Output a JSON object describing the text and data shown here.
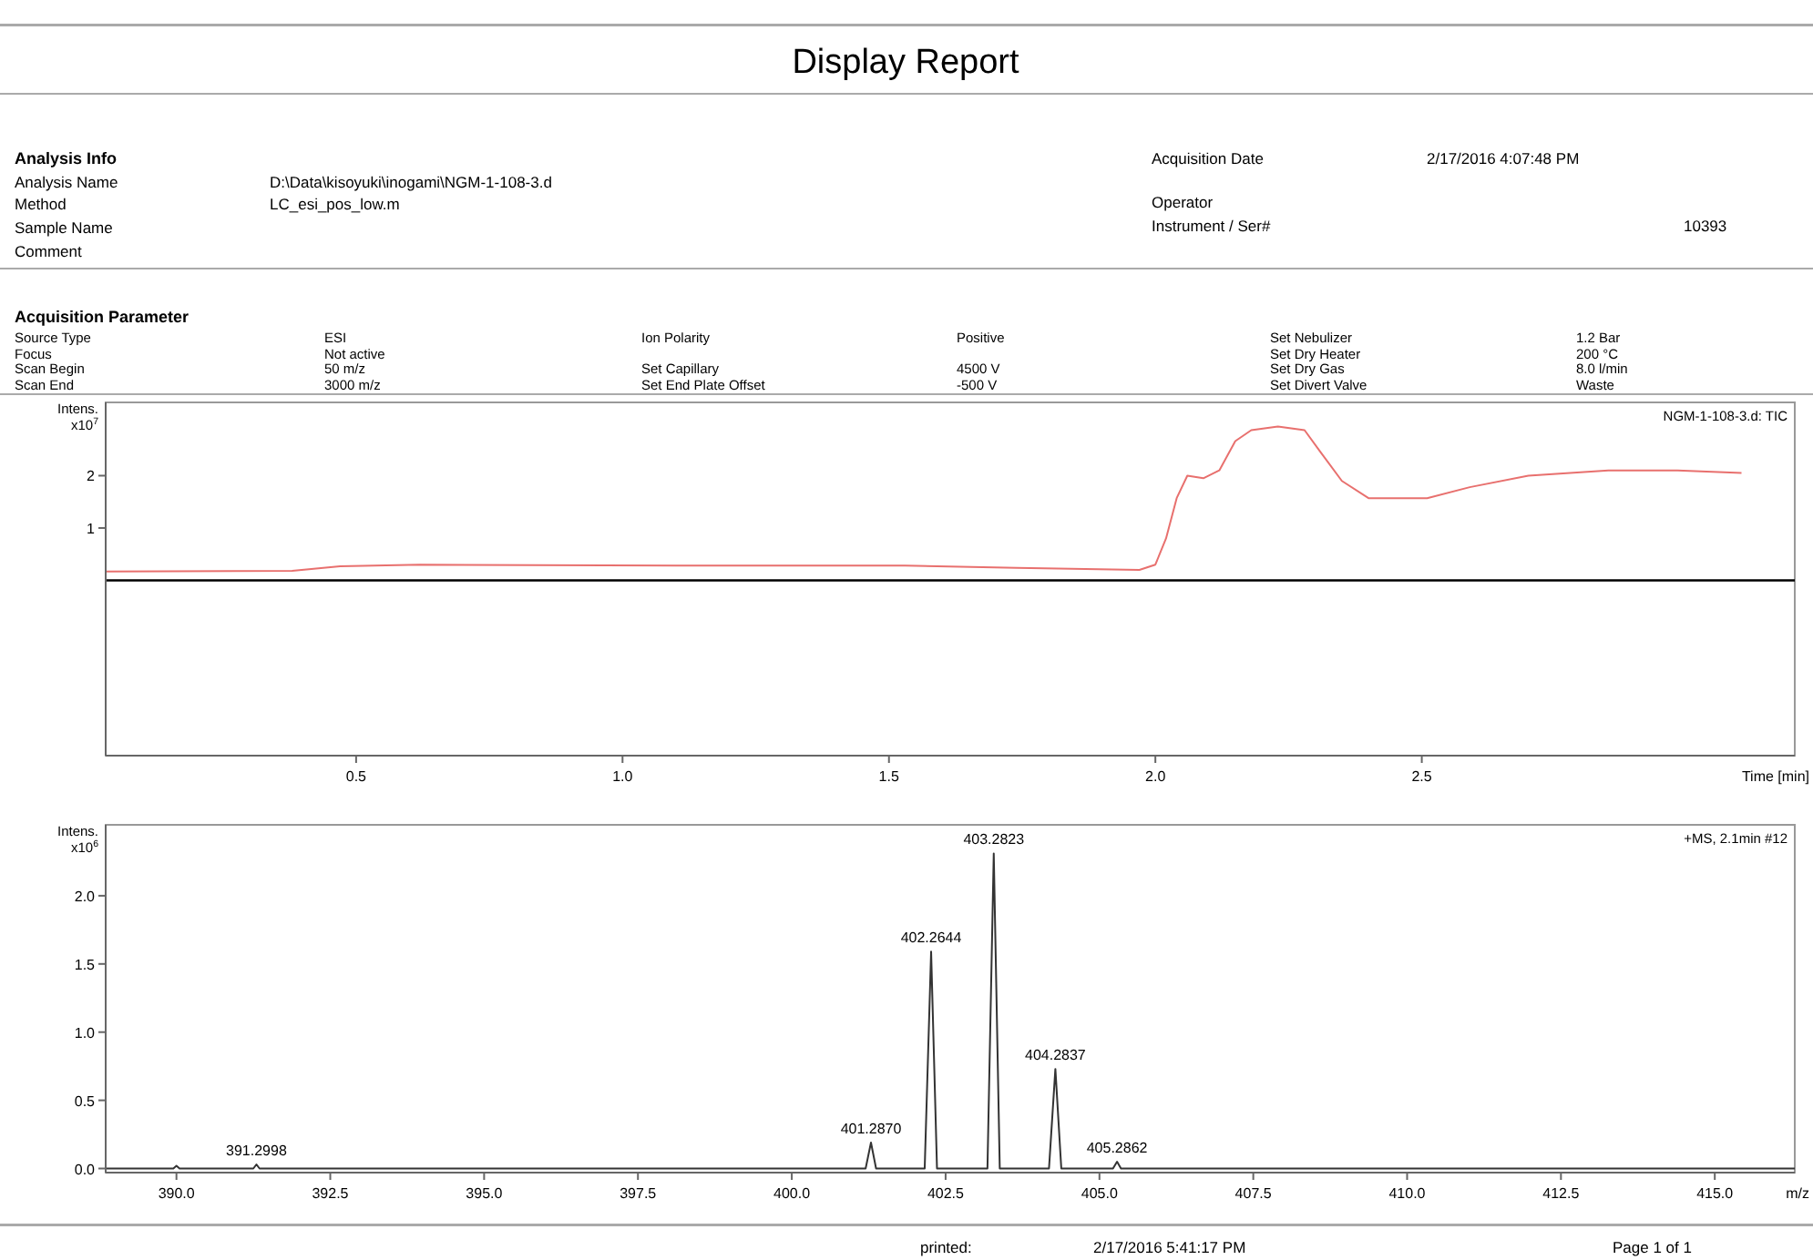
{
  "chart_data": [
    {
      "type": "other",
      "title": "Display Report",
      "annotations": [
        "Analysis Info",
        "Analysis Name",
        "D:\\Data\\kisoyuki\\inogami\\NGM-1-108-3.d",
        "Method",
        "LC_esi_pos_low.m",
        "Sample Name",
        "Comment",
        "Acquisition Date",
        "2/17/2016 4:07:48 PM",
        "Operator",
        "Instrument / Ser#",
        "10393",
        "Acquisition Parameter",
        "Source Type",
        "ESI",
        "Ion Polarity",
        "Positive",
        "Set Nebulizer",
        "1.2 Bar",
        "Focus",
        "Not active",
        "Set Dry Heater",
        "200 °C",
        "Scan Begin",
        "50 m/z",
        "Set Capillary",
        "4500 V",
        "Set Dry Gas",
        "8.0 l/min",
        "Scan End",
        "3000 m/z",
        "Set End Plate Offset",
        "-500 V",
        "Set Divert Valve",
        "Waste"
      ]
    },
    {
      "type": "line",
      "xlabel": "Time [min]",
      "ylabel": "Intens. x10$^{7}$",
      "annotations": [
        "NGM-1-108-3.d: TIC"
      ],
      "xlim": [
        0.03,
        3.2
      ],
      "xticks": [
        0.5,
        {
          "value": 1,
          "label": "1.0"
        },
        1.5,
        {
          "value": 2,
          "label": "2.0"
        },
        2.5
      ],
      "ylim": [
        -3.35,
        3.4
      ],
      "yticks": [
        1,
        2
      ],
      "ref_lines": [
        {
          "axis": "y",
          "value": 0,
          "color": "#000000"
        }
      ],
      "series": [
        {
          "color": "#e8706e",
          "x": [
            0.03,
            0.38,
            0.47,
            0.62,
            1.1,
            1.53,
            1.74,
            1.97,
            2.0,
            2.02,
            2.04,
            2.06,
            2.09,
            2.12,
            2.15,
            2.18,
            2.23,
            2.28,
            2.31,
            2.35,
            2.4,
            2.51,
            2.59,
            2.7,
            2.85,
            2.98,
            3.1
          ],
          "values": [
            0.17,
            0.18,
            0.27,
            0.3,
            0.28,
            0.28,
            0.24,
            0.2,
            0.3,
            0.8,
            1.57,
            2.0,
            1.95,
            2.1,
            2.66,
            2.87,
            2.94,
            2.87,
            2.45,
            1.9,
            1.57,
            1.57,
            1.78,
            2.0,
            2.1,
            2.1,
            2.05
          ]
        }
      ]
    },
    {
      "type": "line",
      "xlabel": "m/z",
      "ylabel": "Intens. x10$^{6}$",
      "xlim": [
        388.85,
        416.3
      ],
      "xticks": [
        {
          "value": 390,
          "label": "390.0"
        },
        392.5,
        {
          "value": 395,
          "label": "395.0"
        },
        397.5,
        {
          "value": 400,
          "label": "400.0"
        },
        402.5,
        {
          "value": 405,
          "label": "405.0"
        },
        407.5,
        {
          "value": 410,
          "label": "410.0"
        },
        412.5,
        {
          "value": 415,
          "label": "415.0"
        }
      ],
      "ylim": [
        -0.03,
        2.52
      ],
      "yticks": [
        {
          "value": 0,
          "label": "0.0"
        },
        0.5,
        {
          "value": 1,
          "label": "1.0"
        },
        1.5,
        {
          "value": 2,
          "label": "2.0"
        }
      ],
      "annotations": [
        "+MS, 2.1min #12",
        {
          "text": "391.2998",
          "x": 391.2998,
          "y": 0.03
        },
        {
          "text": "401.2870",
          "x": 401.287,
          "y": 0.19
        },
        {
          "text": "402.2644",
          "x": 402.2644,
          "y": 1.59
        },
        {
          "text": "403.2823",
          "x": 403.2823,
          "y": 2.31
        },
        {
          "text": "404.2837",
          "x": 404.2837,
          "y": 0.73
        },
        {
          "text": "405.2862",
          "x": 405.2862,
          "y": 0.05
        }
      ],
      "series": [
        {
          "color": "#333333",
          "x": [
            388.85,
            389.95,
            390.0,
            390.05,
            391.25,
            391.3,
            391.35,
            401.2,
            401.287,
            401.37,
            402.16,
            402.2644,
            402.36,
            403.18,
            403.2823,
            403.38,
            404.18,
            404.2837,
            404.38,
            405.22,
            405.2862,
            405.35,
            416.3
          ],
          "values": [
            0,
            0,
            0.02,
            0,
            0,
            0.03,
            0,
            0,
            0.19,
            0,
            0,
            1.59,
            0,
            0,
            2.31,
            0,
            0,
            0.73,
            0,
            0,
            0.05,
            0,
            0
          ]
        }
      ]
    },
    {
      "type": "other",
      "annotations": [
        "printed:",
        "2/17/2016 5:41:17 PM",
        "Page 1 of 1"
      ]
    }
  ]
}
